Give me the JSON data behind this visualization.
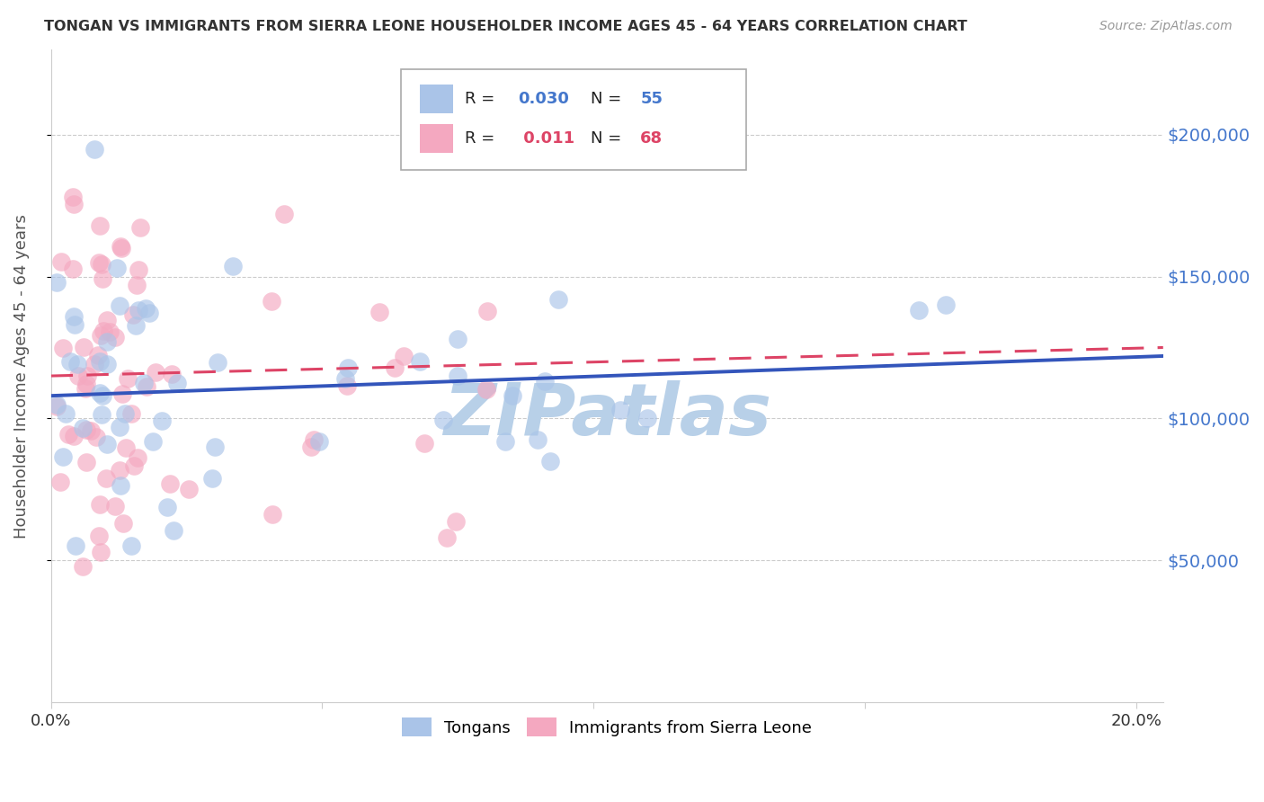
{
  "title": "TONGAN VS IMMIGRANTS FROM SIERRA LEONE HOUSEHOLDER INCOME AGES 45 - 64 YEARS CORRELATION CHART",
  "source": "Source: ZipAtlas.com",
  "ylabel": "Householder Income Ages 45 - 64 years",
  "xlim": [
    0.0,
    0.205
  ],
  "ylim": [
    0,
    230000
  ],
  "yticks": [
    50000,
    100000,
    150000,
    200000
  ],
  "ytick_labels": [
    "$50,000",
    "$100,000",
    "$150,000",
    "$200,000"
  ],
  "xticks": [
    0.0,
    0.05,
    0.1,
    0.15,
    0.2
  ],
  "xtick_labels": [
    "0.0%",
    "",
    "",
    "",
    "20.0%"
  ],
  "background_color": "#ffffff",
  "grid_color": "#cccccc",
  "title_color": "#333333",
  "ylabel_color": "#555555",
  "ytick_color": "#4477cc",
  "xtick_color": "#333333",
  "watermark_text": "ZIPatlas",
  "watermark_color": "#b8d0e8",
  "legend_R_blue": "0.030",
  "legend_N_blue": "55",
  "legend_R_pink": "0.011",
  "legend_N_pink": "68",
  "dot_color_blue": "#aac4e8",
  "dot_color_pink": "#f4a8c0",
  "line_color_blue": "#3355bb",
  "line_color_pink": "#dd4466",
  "blue_line_y0": 108000,
  "blue_line_y1": 122000,
  "pink_line_y0": 115000,
  "pink_line_y1": 125000
}
